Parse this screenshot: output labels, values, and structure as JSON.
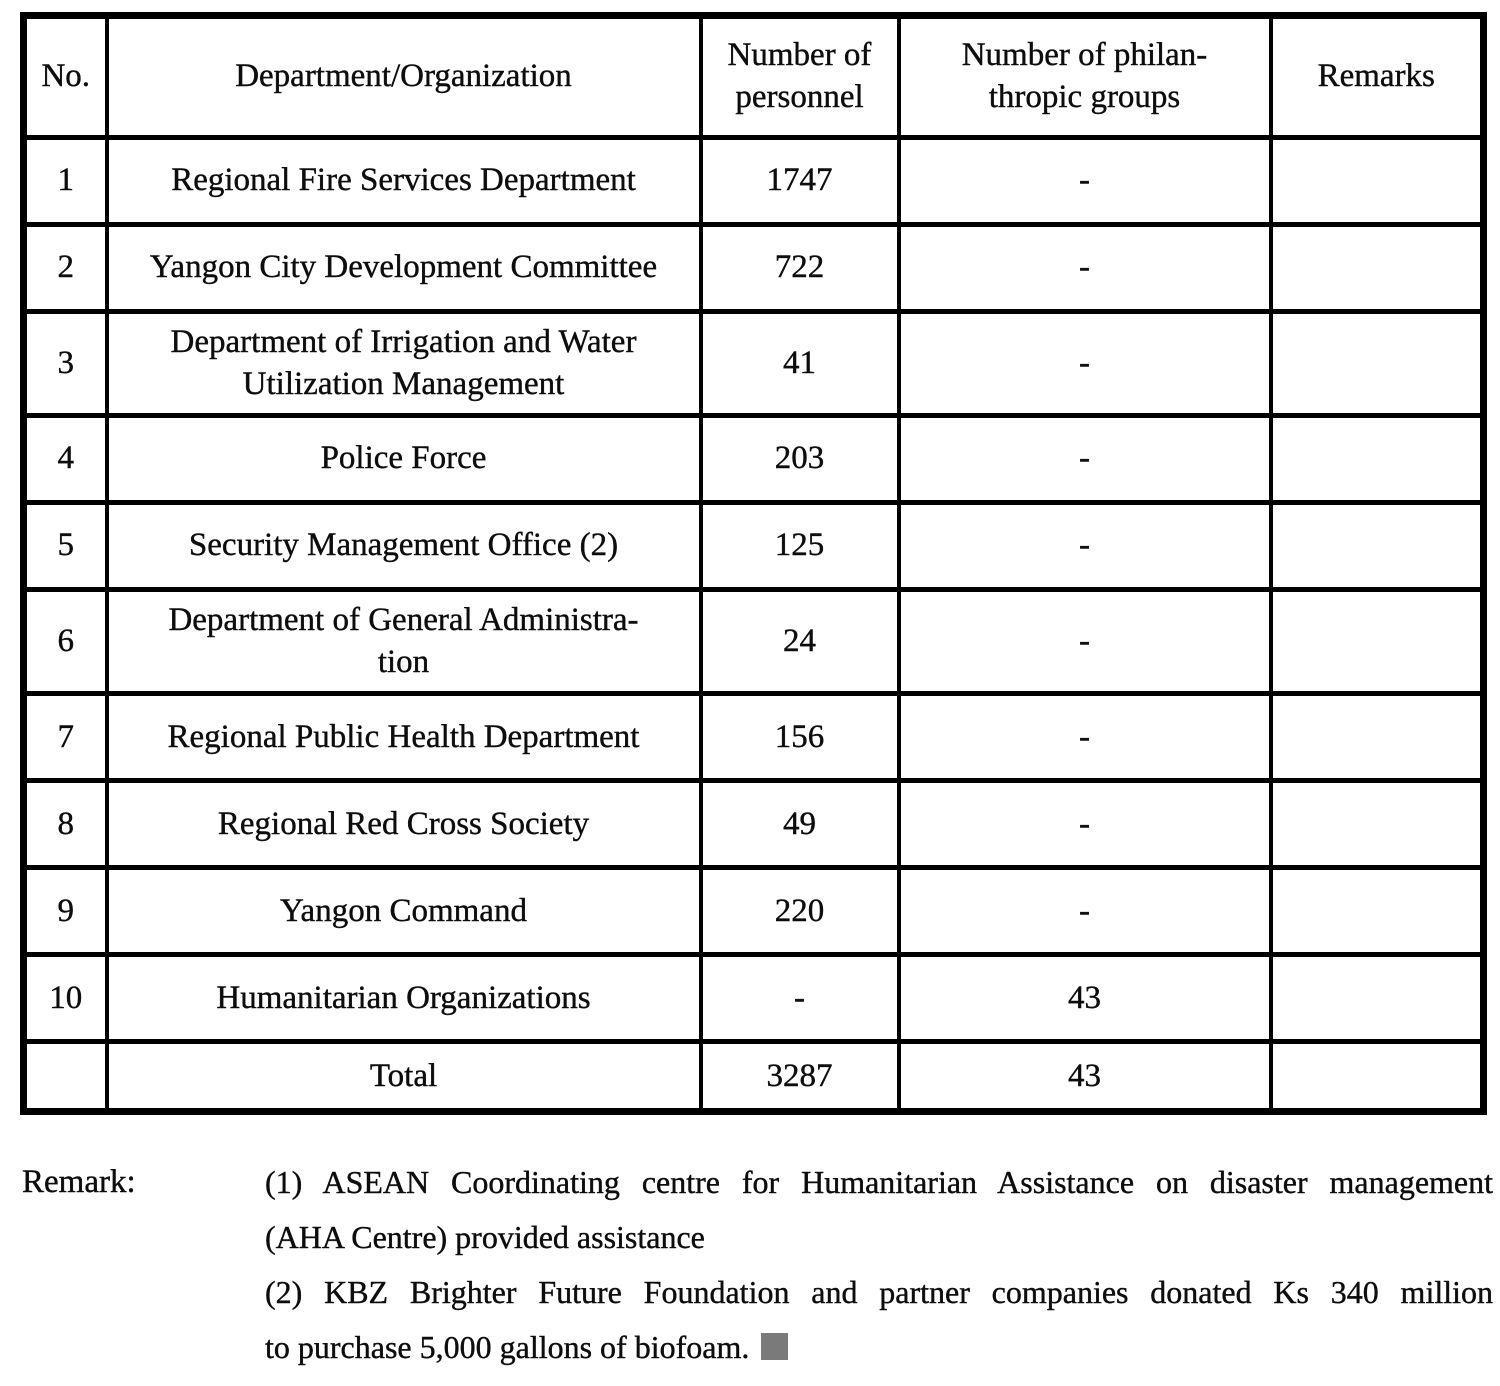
{
  "table": {
    "headers": [
      "No.",
      "Department/Organization",
      "Number of\npersonnel",
      "Number of philan-\nthropic groups",
      "Remarks"
    ],
    "rows": [
      {
        "no": "1",
        "department": "Regional Fire Services Department",
        "personnel": "1747",
        "groups": "-",
        "remarks": ""
      },
      {
        "no": "2",
        "department": "Yangon City Development Committee",
        "personnel": "722",
        "groups": "-",
        "remarks": ""
      },
      {
        "no": "3",
        "department": "Department of Irrigation and Water\nUtilization Management",
        "personnel": "41",
        "groups": "-",
        "remarks": ""
      },
      {
        "no": "4",
        "department": "Police Force",
        "personnel": "203",
        "groups": "-",
        "remarks": ""
      },
      {
        "no": "5",
        "department": "Security Management Office (2)",
        "personnel": "125",
        "groups": "-",
        "remarks": ""
      },
      {
        "no": "6",
        "department": "Department of General Administra-\ntion",
        "personnel": "24",
        "groups": "-",
        "remarks": ""
      },
      {
        "no": "7",
        "department": "Regional Public Health Department",
        "personnel": "156",
        "groups": "-",
        "remarks": ""
      },
      {
        "no": "8",
        "department": "Regional Red Cross Society",
        "personnel": "49",
        "groups": "-",
        "remarks": ""
      },
      {
        "no": "9",
        "department": "Yangon Command",
        "personnel": "220",
        "groups": "-",
        "remarks": ""
      },
      {
        "no": "10",
        "department": "Humanitarian Organizations",
        "personnel": "-",
        "groups": "43",
        "remarks": ""
      },
      {
        "no": "",
        "department": "Total",
        "personnel": "3287",
        "groups": "43",
        "remarks": "",
        "is_total": true
      }
    ]
  },
  "remark": {
    "label": "Remark:",
    "lines": [
      "(1) ASEAN Coordinating centre for Humanitarian Assistance on disaster management",
      "(AHA Centre) provided assistance",
      "(2) KBZ Brighter Future Foundation and partner companies donated Ks 340 million",
      "to purchase 5,000 gallons of biofoam."
    ],
    "end_marker_color": "#7a7a7a"
  },
  "colors": {
    "text": "#0d0d0d",
    "border": "#000000",
    "background": "#ffffff"
  }
}
